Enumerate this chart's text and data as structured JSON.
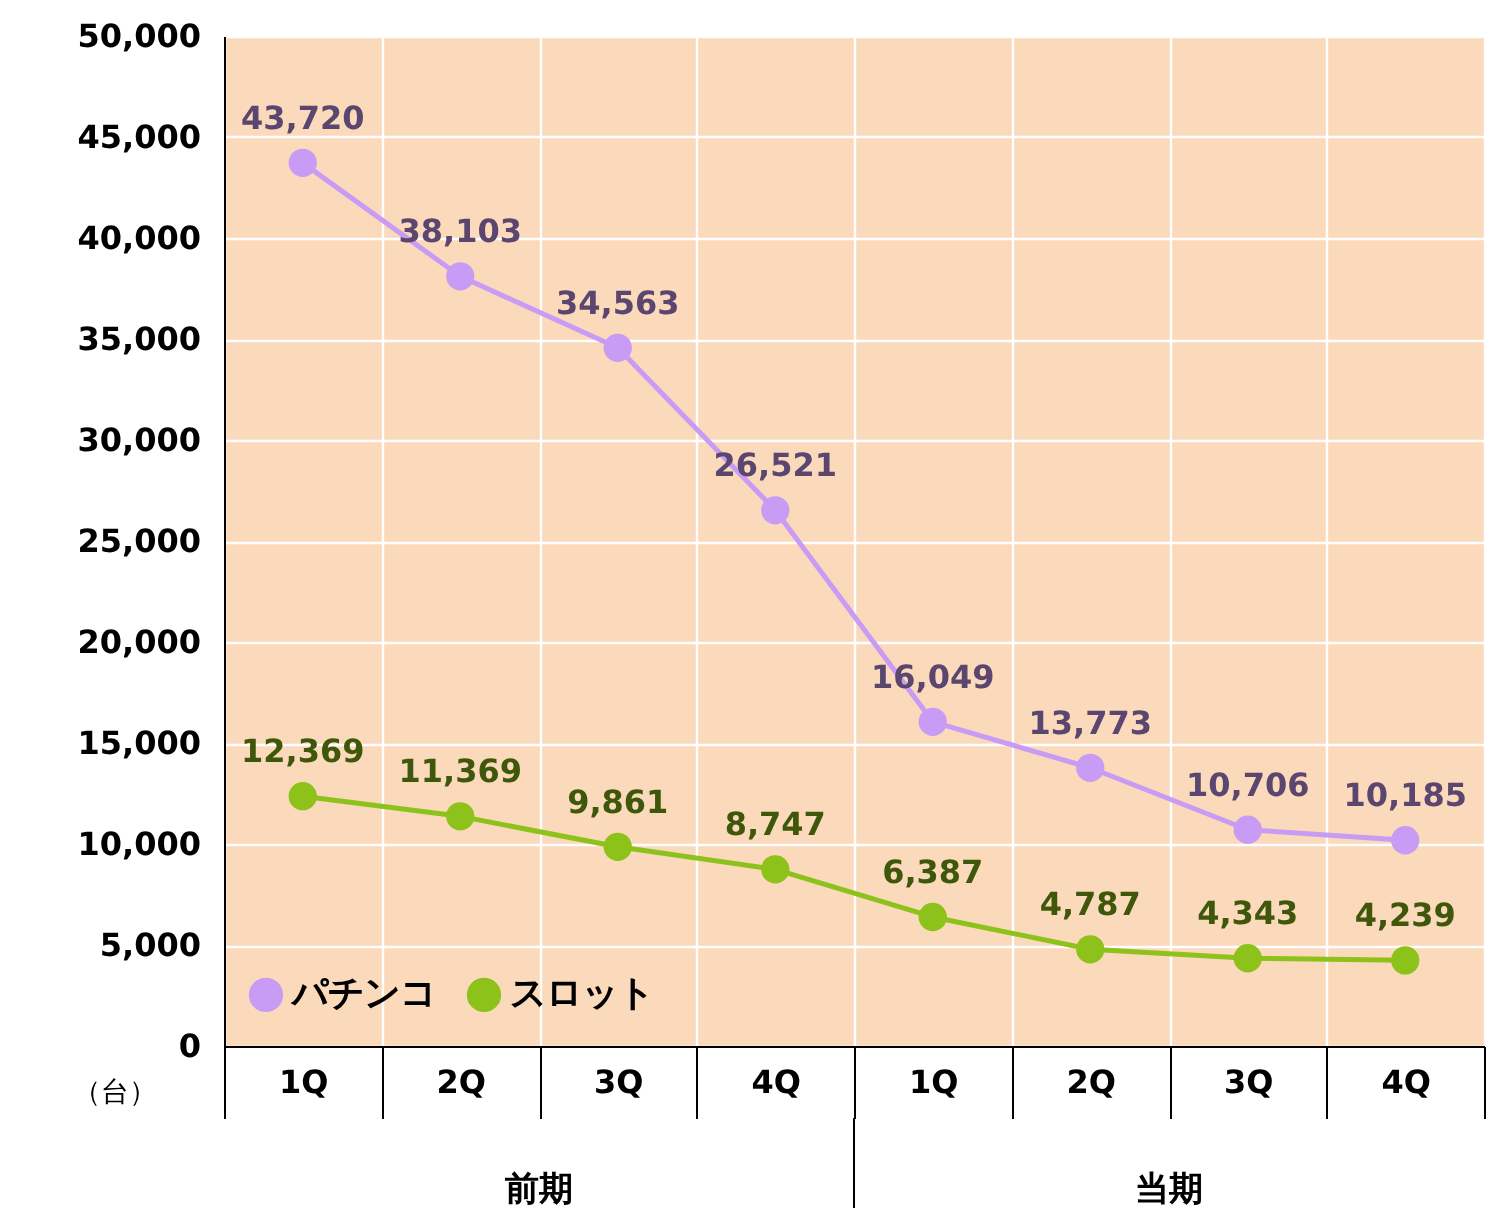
{
  "chart_data": {
    "type": "line",
    "ylabel": "（台）",
    "categories": [
      "1Q",
      "2Q",
      "3Q",
      "4Q",
      "1Q",
      "2Q",
      "3Q",
      "4Q"
    ],
    "series": [
      {
        "name": "パチンコ",
        "color": "#c89cf5",
        "values": [
          43720,
          38103,
          34563,
          26521,
          16049,
          13773,
          10706,
          10185
        ],
        "value_labels": [
          "43,720",
          "38,103",
          "34,563",
          "26,521",
          "16,049",
          "13,773",
          "10,706",
          "10,185"
        ]
      },
      {
        "name": "スロット",
        "color": "#8cc21a",
        "values": [
          12369,
          11369,
          9861,
          8747,
          6387,
          4787,
          4343,
          4239
        ],
        "value_labels": [
          "12,369",
          "11,369",
          "9,861",
          "8,747",
          "6,387",
          "4,787",
          "4,343",
          "4,239"
        ]
      }
    ],
    "ylim": [
      0,
      50000
    ],
    "yticks": [
      0,
      {
        "value": 5000,
        "label": "5,000"
      },
      {
        "value": 10000,
        "label": "10,000"
      },
      {
        "value": 15000,
        "label": "15,000"
      },
      {
        "value": 20000,
        "label": "20,000"
      },
      {
        "value": 25000,
        "label": "25,000"
      },
      {
        "value": 30000,
        "label": "30,000"
      },
      {
        "value": 35000,
        "label": "35,000"
      },
      {
        "value": 40000,
        "label": "40,000"
      },
      {
        "value": 45000,
        "label": "45,000"
      },
      {
        "value": 50000,
        "label": "50,000"
      }
    ],
    "annotations": [
      "前期",
      "当期"
    ],
    "grid": true,
    "legend": "bottom left",
    "marker": "circle",
    "line_style": "solid"
  }
}
